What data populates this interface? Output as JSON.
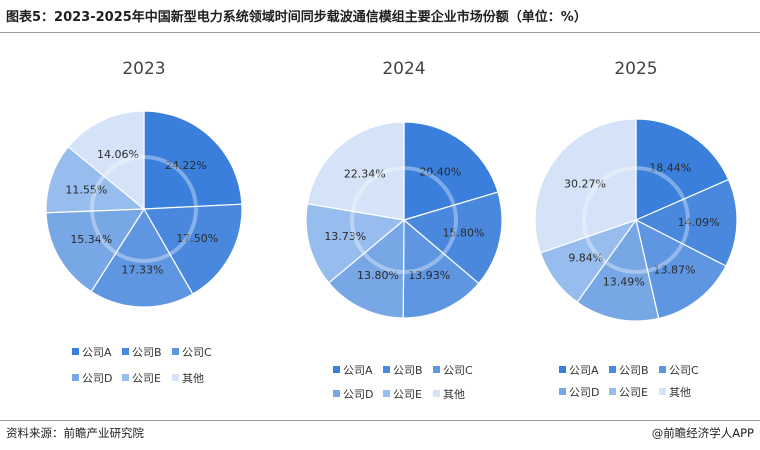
{
  "title": "图表5：2023-2025年中国新型电力系统领域时间同步载波通信模组主要企业市场份额（单位：%）",
  "source": "资料来源：前瞻产业研究院",
  "credit": "@前瞻经济学人APP",
  "watermark": "前瞻产业研究院",
  "colors": [
    "#3b7fdc",
    "#4a88de",
    "#5f96e2",
    "#78a7e6",
    "#97bdee",
    "#d4e3f8"
  ],
  "chart_data": [
    {
      "type": "pie",
      "title": "2023",
      "labels": [
        "公司A",
        "公司B",
        "公司C",
        "公司D",
        "公司E",
        "其他"
      ],
      "values": [
        24.22,
        17.5,
        17.33,
        15.34,
        11.55,
        14.06
      ],
      "value_labels": [
        "24.22%",
        "17.50%",
        "17.33%",
        "15.34%",
        "11.55%",
        "14.06%"
      ],
      "legend": "bottom"
    },
    {
      "type": "pie",
      "title": "2024",
      "labels": [
        "公司A",
        "公司B",
        "公司C",
        "公司D",
        "公司E",
        "其他"
      ],
      "values": [
        20.4,
        15.8,
        13.93,
        13.8,
        13.73,
        22.34
      ],
      "value_labels": [
        "20.40%",
        "15.80%",
        "13.93%",
        "13.80%",
        "13.73%",
        "22.34%"
      ],
      "legend": "bottom"
    },
    {
      "type": "pie",
      "title": "2025",
      "labels": [
        "公司A",
        "公司B",
        "公司C",
        "公司D",
        "公司E",
        "其他"
      ],
      "values": [
        18.44,
        14.09,
        13.87,
        13.49,
        9.84,
        30.27
      ],
      "value_labels": [
        "18.44%",
        "14.09%",
        "13.87%",
        "13.49%",
        "9.84%",
        "30.27%"
      ],
      "legend": "bottom"
    }
  ]
}
